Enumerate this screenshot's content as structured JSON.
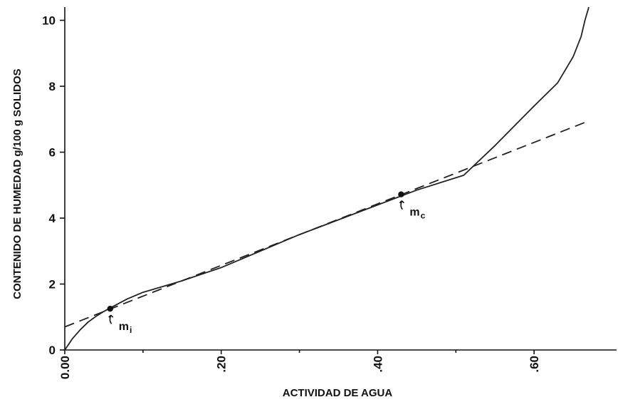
{
  "chart_data": {
    "type": "line",
    "title": "",
    "xlabel": "ACTIVIDAD DE AGUA",
    "ylabel": "CONTENIDO DE HUMEDAD g/100 g SOLIDOS",
    "xlim": [
      0,
      0.7
    ],
    "ylim": [
      0,
      10.4
    ],
    "x_ticks": [
      0,
      0.2,
      0.4,
      0.6
    ],
    "x_tick_labels": [
      "0.00",
      ".20",
      ".40",
      ".60"
    ],
    "x_minor_ticks": [
      0.1,
      0.3,
      0.5
    ],
    "y_ticks": [
      0,
      2,
      4,
      6,
      8,
      10
    ],
    "y_tick_labels": [
      "0",
      "2",
      "4",
      "6",
      "8",
      "10"
    ],
    "grid": false,
    "series": [
      {
        "style": "solid",
        "x": [
          0.0,
          0.01,
          0.02,
          0.03,
          0.04,
          0.05,
          0.06,
          0.08,
          0.1,
          0.15,
          0.2,
          0.3,
          0.4,
          0.45,
          0.51,
          0.55,
          0.6,
          0.63,
          0.65,
          0.66,
          0.665,
          0.67
        ],
        "y": [
          0.0,
          0.35,
          0.62,
          0.85,
          1.02,
          1.17,
          1.3,
          1.55,
          1.75,
          2.1,
          2.5,
          3.5,
          4.4,
          4.85,
          5.3,
          6.2,
          7.4,
          8.1,
          8.9,
          9.5,
          10.0,
          10.4
        ]
      },
      {
        "style": "dashed",
        "x": [
          0.0,
          0.67
        ],
        "y": [
          0.7,
          6.95
        ]
      }
    ],
    "points": [
      {
        "x": 0.058,
        "y": 1.25,
        "label": "m",
        "sub": "i"
      },
      {
        "x": 0.43,
        "y": 4.72,
        "label": "m",
        "sub": "c"
      }
    ]
  }
}
